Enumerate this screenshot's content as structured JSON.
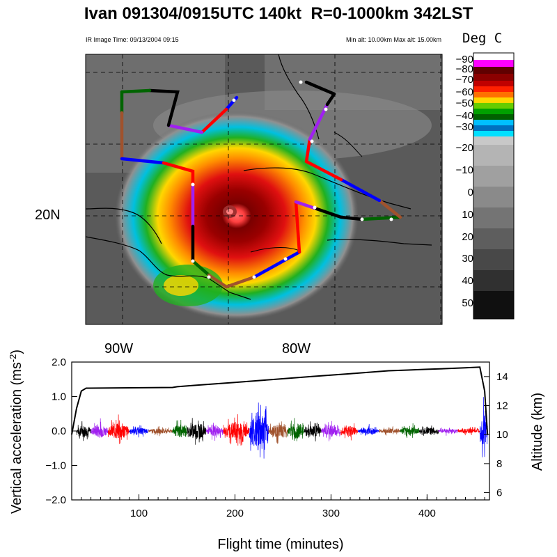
{
  "title": "Ivan 091304/0915UTC 140kt  R=0-1000km 342LST",
  "ir_image_time": "IR Image Time: 09/13/2004 09:15",
  "altitude_range": "Min alt: 10.00km  Max alt: 15.00km",
  "colorbar": {
    "title": "Deg C",
    "labels": [
      "-90",
      "-80",
      "-70",
      "-60",
      "-50",
      "-40",
      "-30",
      "-20",
      "-10",
      "0",
      "10",
      "20",
      "30",
      "40",
      "50"
    ]
  },
  "map": {
    "lat_labels": [
      "20N"
    ],
    "lon_labels": [
      "90W",
      "80W"
    ]
  },
  "chart_data": {
    "type": "line",
    "xlabel": "Flight time (minutes)",
    "ylabel": "Vertical acceleration (ms-2)",
    "ylabel_right": "Altitude (km)",
    "xlim": [
      30,
      465
    ],
    "ylim": [
      -2.0,
      2.0
    ],
    "ylim_right": [
      5.5,
      15
    ],
    "x_ticks": [
      "100",
      "200",
      "300",
      "400"
    ],
    "y_ticks": [
      "2.0",
      "1.0",
      "0.0",
      "-1.0",
      "-2.0"
    ],
    "y_ticks_right": [
      "14",
      "12",
      "10",
      "8",
      "6"
    ],
    "segment_colors": [
      "#000000",
      "#a020f0",
      "#ff0000",
      "#0000ff",
      "#a0522d",
      "#006400"
    ],
    "altitude": {
      "x": [
        30,
        35,
        40,
        45,
        135,
        137,
        140,
        160,
        180,
        200,
        220,
        240,
        260,
        280,
        300,
        320,
        340,
        360,
        380,
        400,
        420,
        440,
        455,
        460,
        463
      ],
      "y": [
        10,
        11.8,
        13.0,
        13.2,
        13.25,
        null,
        13.3,
        13.4,
        13.5,
        13.6,
        13.7,
        13.8,
        13.9,
        14.0,
        14.1,
        14.2,
        14.3,
        14.4,
        14.45,
        14.5,
        14.55,
        14.6,
        14.65,
        13.0,
        10
      ]
    },
    "acceleration_segments": [
      {
        "start": 35,
        "end": 50,
        "color": "#000000",
        "amp": 0.35
      },
      {
        "start": 50,
        "end": 68,
        "color": "#a020f0",
        "amp": 0.4
      },
      {
        "start": 68,
        "end": 90,
        "color": "#ff0000",
        "amp": 0.5
      },
      {
        "start": 90,
        "end": 110,
        "color": "#0000ff",
        "amp": 0.2
      },
      {
        "start": 110,
        "end": 135,
        "color": "#a0522d",
        "amp": 0.15
      },
      {
        "start": 135,
        "end": 150,
        "color": "#006400",
        "amp": 0.4
      },
      {
        "start": 150,
        "end": 170,
        "color": "#000000",
        "amp": 0.5
      },
      {
        "start": 170,
        "end": 188,
        "color": "#a020f0",
        "amp": 0.3
      },
      {
        "start": 188,
        "end": 215,
        "color": "#ff0000",
        "amp": 0.55
      },
      {
        "start": 215,
        "end": 235,
        "color": "#0000ff",
        "amp": 1.2
      },
      {
        "start": 235,
        "end": 255,
        "color": "#a0522d",
        "amp": 0.4
      },
      {
        "start": 255,
        "end": 272,
        "color": "#006400",
        "amp": 0.45
      },
      {
        "start": 272,
        "end": 290,
        "color": "#000000",
        "amp": 0.35
      },
      {
        "start": 290,
        "end": 310,
        "color": "#a020f0",
        "amp": 0.35
      },
      {
        "start": 310,
        "end": 328,
        "color": "#ff0000",
        "amp": 0.3
      },
      {
        "start": 328,
        "end": 350,
        "color": "#0000ff",
        "amp": 0.2
      },
      {
        "start": 350,
        "end": 372,
        "color": "#a0522d",
        "amp": 0.15
      },
      {
        "start": 372,
        "end": 392,
        "color": "#006400",
        "amp": 0.25
      },
      {
        "start": 392,
        "end": 412,
        "color": "#000000",
        "amp": 0.2
      },
      {
        "start": 412,
        "end": 432,
        "color": "#a020f0",
        "amp": 0.15
      },
      {
        "start": 432,
        "end": 455,
        "color": "#ff0000",
        "amp": 0.15
      },
      {
        "start": 455,
        "end": 463,
        "color": "#0000ff",
        "amp": 1.0
      }
    ]
  }
}
